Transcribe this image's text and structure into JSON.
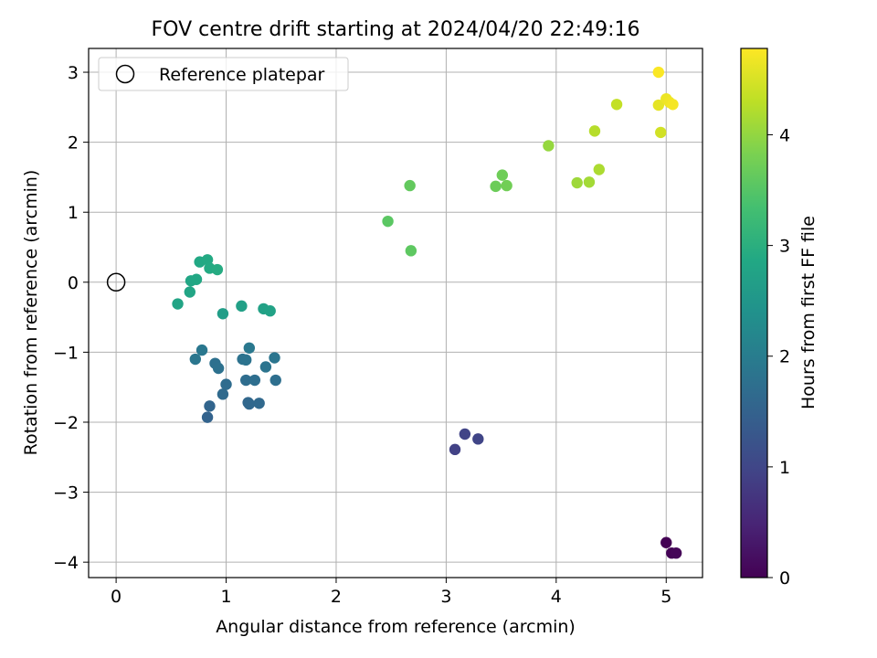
{
  "chart_data": {
    "type": "scatter",
    "title": "FOV centre drift starting at 2024/04/20 22:49:16",
    "xlabel": "Angular distance from reference (arcmin)",
    "ylabel": "Rotation from reference (arcmin)",
    "xlim": [
      -0.25,
      5.33
    ],
    "ylim": [
      -4.22,
      3.34
    ],
    "xticks": [
      "0",
      "1",
      "2",
      "3",
      "4",
      "5"
    ],
    "yticks": [
      "−4",
      "−3",
      "−2",
      "−1",
      "0",
      "1",
      "2",
      "3"
    ],
    "grid": true,
    "legend": {
      "position": "top-left",
      "label": "Reference platepar"
    },
    "reference_point": {
      "x": 0,
      "y": 0
    },
    "colorbar": {
      "label": "Hours from first FF file",
      "colormap": "viridis",
      "range": [
        0,
        4.78
      ],
      "ticks": [
        "0",
        "1",
        "2",
        "3",
        "4"
      ]
    },
    "points": [
      {
        "x": 5.0,
        "y": -3.72,
        "h": 0.0
      },
      {
        "x": 5.05,
        "y": -3.87,
        "h": 0.03
      },
      {
        "x": 5.09,
        "y": -3.87,
        "h": 0.06
      },
      {
        "x": 3.08,
        "y": -2.39,
        "h": 0.92
      },
      {
        "x": 3.17,
        "y": -2.17,
        "h": 0.95
      },
      {
        "x": 3.29,
        "y": -2.24,
        "h": 0.98
      },
      {
        "x": 0.83,
        "y": -1.93,
        "h": 1.52
      },
      {
        "x": 0.85,
        "y": -1.77,
        "h": 1.55
      },
      {
        "x": 1.2,
        "y": -1.72,
        "h": 1.58
      },
      {
        "x": 1.21,
        "y": -1.74,
        "h": 1.6
      },
      {
        "x": 1.3,
        "y": -1.73,
        "h": 1.62
      },
      {
        "x": 0.97,
        "y": -1.6,
        "h": 1.65
      },
      {
        "x": 1.0,
        "y": -1.46,
        "h": 1.68
      },
      {
        "x": 1.18,
        "y": -1.4,
        "h": 1.7
      },
      {
        "x": 1.26,
        "y": -1.4,
        "h": 1.72
      },
      {
        "x": 1.45,
        "y": -1.4,
        "h": 1.74
      },
      {
        "x": 0.9,
        "y": -1.16,
        "h": 1.76
      },
      {
        "x": 0.93,
        "y": -1.23,
        "h": 1.78
      },
      {
        "x": 1.15,
        "y": -1.1,
        "h": 1.8
      },
      {
        "x": 1.18,
        "y": -1.11,
        "h": 1.82
      },
      {
        "x": 1.36,
        "y": -1.21,
        "h": 1.84
      },
      {
        "x": 1.44,
        "y": -1.08,
        "h": 1.86
      },
      {
        "x": 0.72,
        "y": -1.1,
        "h": 1.88
      },
      {
        "x": 0.78,
        "y": -0.97,
        "h": 1.9
      },
      {
        "x": 1.21,
        "y": -0.94,
        "h": 1.92
      },
      {
        "x": 0.97,
        "y": -0.45,
        "h": 2.65
      },
      {
        "x": 1.14,
        "y": -0.34,
        "h": 2.7
      },
      {
        "x": 1.34,
        "y": -0.38,
        "h": 2.72
      },
      {
        "x": 1.4,
        "y": -0.41,
        "h": 2.74
      },
      {
        "x": 0.56,
        "y": -0.31,
        "h": 2.78
      },
      {
        "x": 0.67,
        "y": -0.14,
        "h": 2.8
      },
      {
        "x": 0.68,
        "y": 0.02,
        "h": 2.82
      },
      {
        "x": 0.73,
        "y": 0.04,
        "h": 2.84
      },
      {
        "x": 0.76,
        "y": 0.29,
        "h": 2.86
      },
      {
        "x": 0.83,
        "y": 0.32,
        "h": 2.88
      },
      {
        "x": 0.85,
        "y": 0.2,
        "h": 2.9
      },
      {
        "x": 0.92,
        "y": 0.18,
        "h": 2.92
      },
      {
        "x": 2.47,
        "y": 0.87,
        "h": 3.55
      },
      {
        "x": 2.68,
        "y": 0.45,
        "h": 3.58
      },
      {
        "x": 2.67,
        "y": 1.38,
        "h": 3.62
      },
      {
        "x": 3.45,
        "y": 1.37,
        "h": 3.7
      },
      {
        "x": 3.51,
        "y": 1.53,
        "h": 3.72
      },
      {
        "x": 3.55,
        "y": 1.38,
        "h": 3.74
      },
      {
        "x": 3.93,
        "y": 1.95,
        "h": 4.02
      },
      {
        "x": 4.19,
        "y": 1.42,
        "h": 4.08
      },
      {
        "x": 4.3,
        "y": 1.43,
        "h": 4.12
      },
      {
        "x": 4.39,
        "y": 1.61,
        "h": 4.18
      },
      {
        "x": 4.35,
        "y": 2.16,
        "h": 4.25
      },
      {
        "x": 4.55,
        "y": 2.54,
        "h": 4.35
      },
      {
        "x": 4.95,
        "y": 2.14,
        "h": 4.45
      },
      {
        "x": 4.93,
        "y": 2.53,
        "h": 4.6
      },
      {
        "x": 5.0,
        "y": 2.62,
        "h": 4.65
      },
      {
        "x": 5.03,
        "y": 2.57,
        "h": 4.68
      },
      {
        "x": 5.06,
        "y": 2.54,
        "h": 4.72
      },
      {
        "x": 4.93,
        "y": 3.0,
        "h": 4.76
      }
    ]
  }
}
